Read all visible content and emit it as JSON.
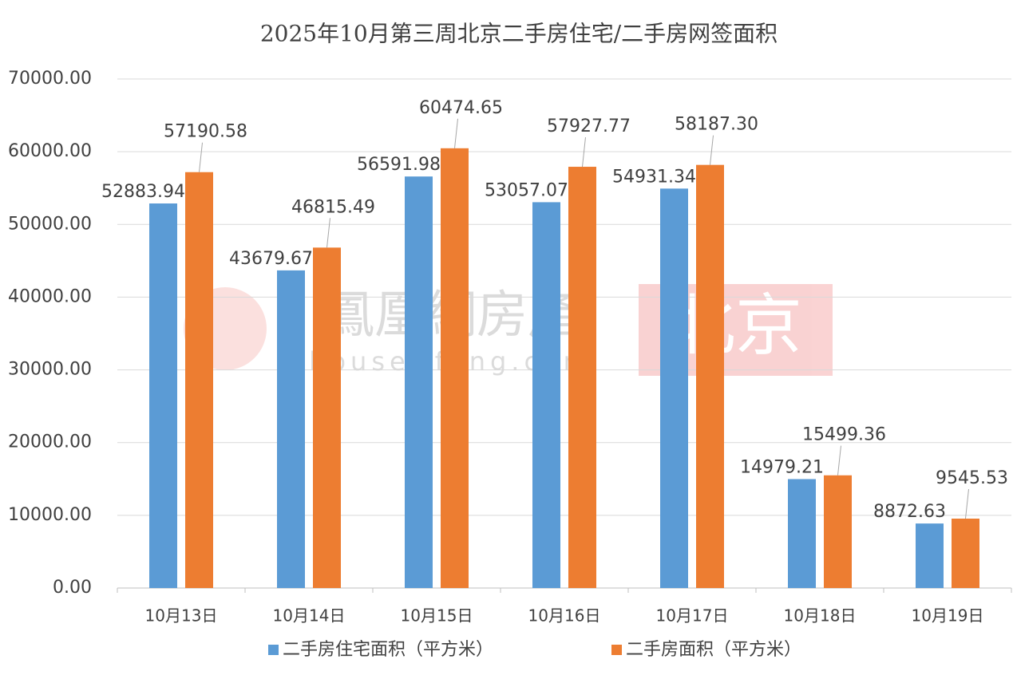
{
  "chart_data": {
    "type": "bar",
    "title": "2025年10月第三周北京二手房住宅/二手房网签面积",
    "categories": [
      "10月13日",
      "10月14日",
      "10月15日",
      "10月16日",
      "10月17日",
      "10月18日",
      "10月19日"
    ],
    "series": [
      {
        "name": "二手房住宅面积（平方米）",
        "color": "#5b9bd5",
        "values": [
          52883.94,
          43679.67,
          56591.98,
          53057.07,
          54931.34,
          14979.21,
          8872.63
        ],
        "value_labels": [
          "52883.94",
          "43679.67",
          "56591.98",
          "53057.07",
          "54931.34",
          "14979.21",
          "8872.63"
        ]
      },
      {
        "name": "二手房面积（平方米）",
        "color": "#ed7d31",
        "values": [
          57190.58,
          46815.49,
          60474.65,
          57927.77,
          58187.3,
          15499.36,
          9545.53
        ],
        "value_labels": [
          "57190.58",
          "46815.49",
          "60474.65",
          "57927.77",
          "58187.30",
          "15499.36",
          "9545.53"
        ]
      }
    ],
    "ylim": [
      0,
      70000
    ],
    "yticks": [
      {
        "value": 0,
        "label": "0.00"
      },
      {
        "value": 10000,
        "label": "10000.00"
      },
      {
        "value": 20000,
        "label": "20000.00"
      },
      {
        "value": 30000,
        "label": "30000.00"
      },
      {
        "value": 40000,
        "label": "40000.00"
      },
      {
        "value": 50000,
        "label": "50000.00"
      },
      {
        "value": 60000,
        "label": "60000.00"
      },
      {
        "value": 70000,
        "label": "70000.00"
      }
    ],
    "grid": true,
    "legend": "bottom"
  },
  "watermark": {
    "brand": "鳳凰網房產",
    "url": "house.ifeng.com",
    "city": "北京"
  }
}
